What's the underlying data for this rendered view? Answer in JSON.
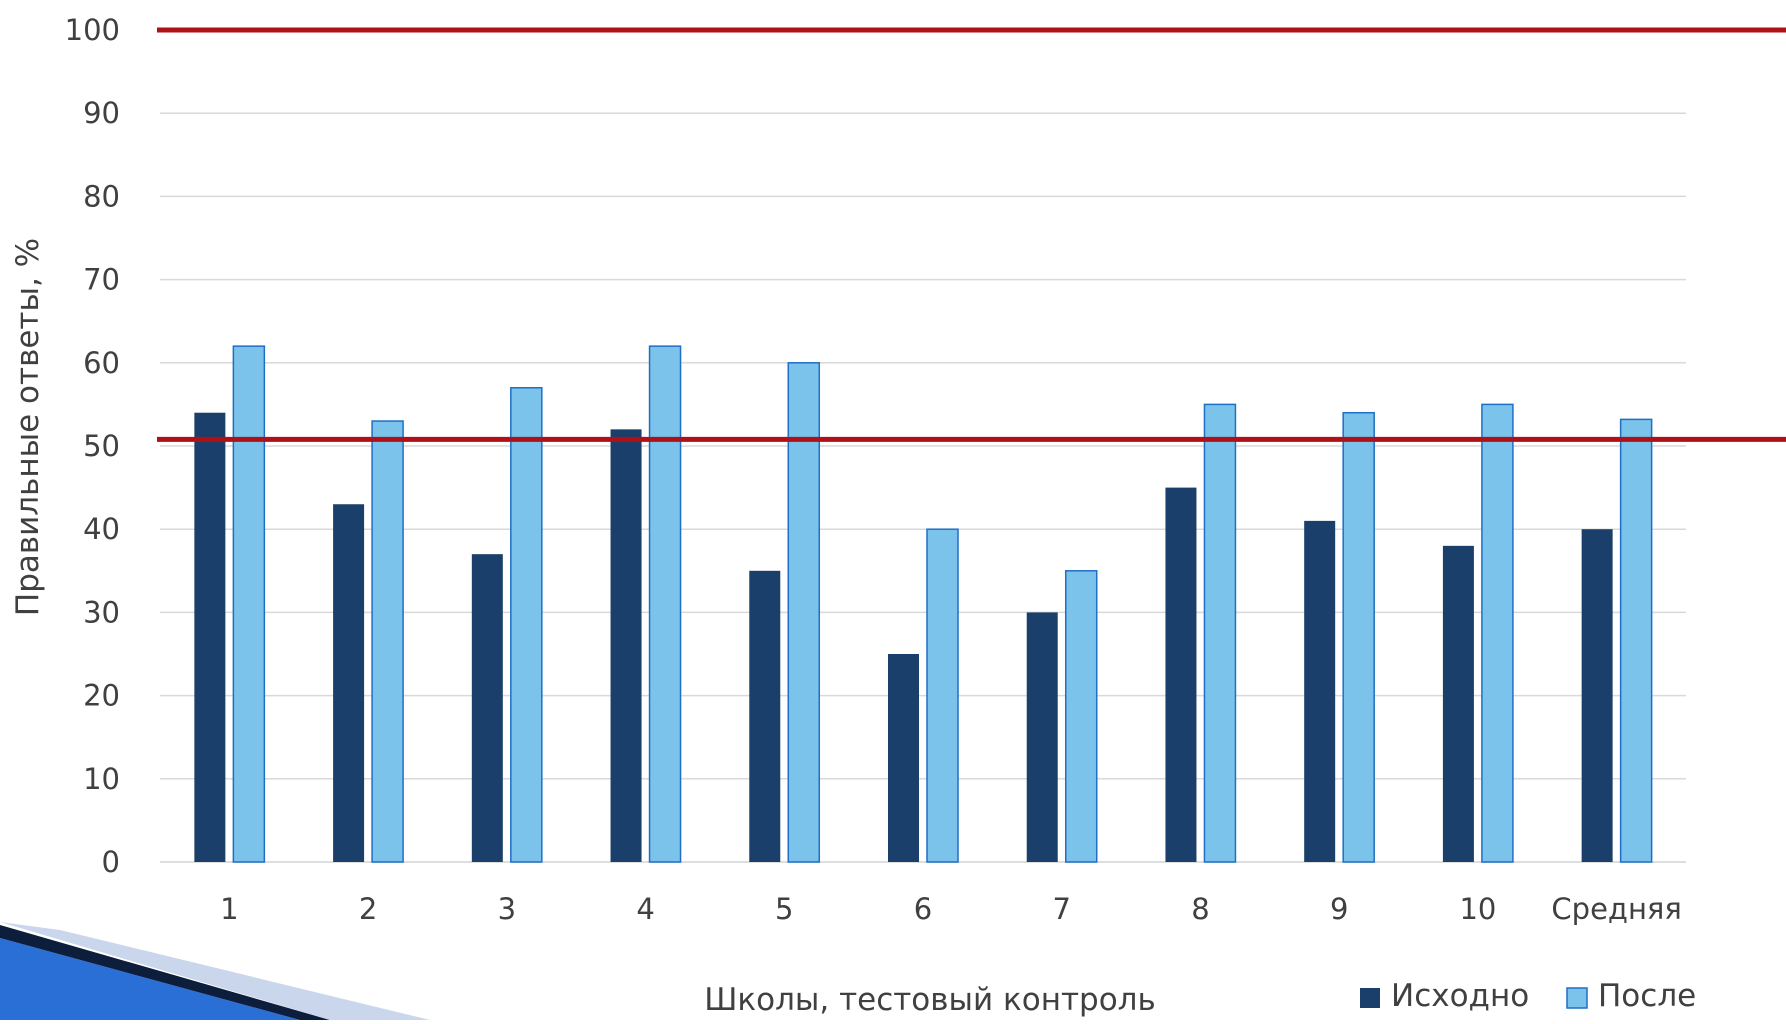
{
  "chart_data": {
    "type": "bar",
    "xlabel": "Школы, тестовый контроль",
    "ylabel": "Правильные ответы, %",
    "ylim": [
      0,
      100
    ],
    "yticks": [
      0,
      10,
      20,
      30,
      40,
      50,
      60,
      70,
      80,
      90,
      100
    ],
    "grid": true,
    "legend_position": "bottom-right",
    "categories": [
      "1",
      "2",
      "3",
      "4",
      "5",
      "6",
      "7",
      "8",
      "9",
      "10",
      "Средняя"
    ],
    "series": [
      {
        "name": "Исходно",
        "color": "#1b3f6b",
        "values": [
          54,
          43,
          37,
          52,
          35,
          25,
          30,
          45,
          41,
          38,
          40
        ]
      },
      {
        "name": "После",
        "color": "#7bc3ea",
        "values": [
          62,
          53,
          57,
          62,
          60,
          40,
          35,
          55,
          54,
          55,
          53.2
        ]
      }
    ],
    "reference_lines": [
      {
        "value": 100,
        "color": "#b01116"
      },
      {
        "value": 50.8,
        "color": "#b01116"
      }
    ]
  },
  "colors": {
    "gridline": "#d9d9d9",
    "axis_text": "#404040",
    "reference_line": "#b01116",
    "bar_outline": "#1f6fc5",
    "decoration_dark": "#0d1e3d",
    "decoration_blue": "#2a6fd6"
  }
}
